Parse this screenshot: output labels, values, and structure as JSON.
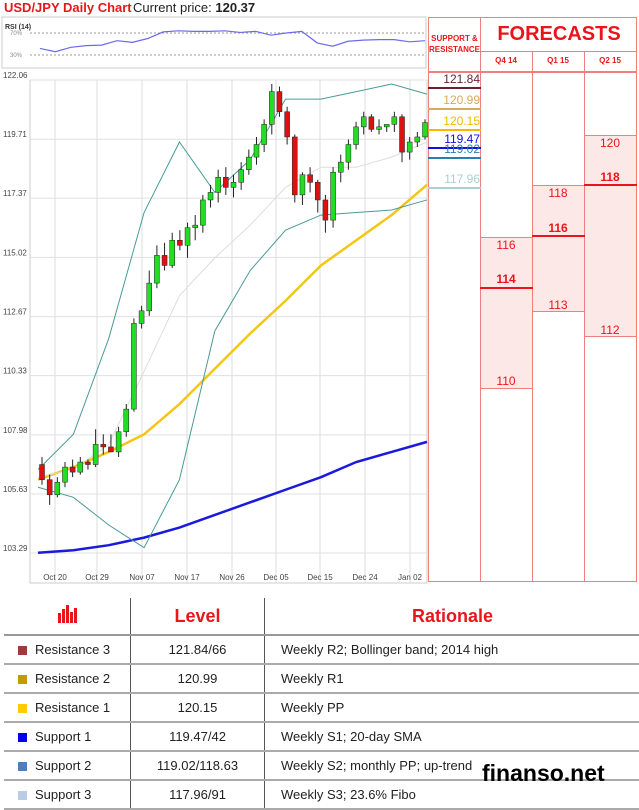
{
  "header": {
    "title": "USD/JPY Daily Chart",
    "current_price_label": "Current price:",
    "current_price": "120.37"
  },
  "chart_data": {
    "type": "candlestick",
    "y_ticks": [
      "122.06",
      "119.71",
      "117.37",
      "115.02",
      "112.67",
      "110.33",
      "107.98",
      "105.63",
      "103.29"
    ],
    "ylim": [
      103.29,
      122.06
    ],
    "x_ticks": [
      "Oct 20",
      "Oct 29",
      "Nov 07",
      "Nov 17",
      "Nov 26",
      "Dec 05",
      "Dec 15",
      "Dec 24",
      "Jan 02"
    ],
    "candles_ohlc": [
      [
        106.8,
        107.1,
        106.0,
        106.2
      ],
      [
        106.2,
        106.4,
        105.2,
        105.6
      ],
      [
        105.6,
        106.3,
        105.5,
        106.1
      ],
      [
        106.1,
        106.9,
        105.9,
        106.7
      ],
      [
        106.7,
        107.0,
        106.3,
        106.5
      ],
      [
        106.5,
        107.1,
        106.4,
        106.9
      ],
      [
        106.9,
        107.0,
        106.6,
        106.8
      ],
      [
        106.8,
        108.2,
        106.7,
        107.6
      ],
      [
        107.6,
        108.0,
        107.2,
        107.5
      ],
      [
        107.5,
        108.0,
        107.3,
        107.3
      ],
      [
        107.3,
        108.3,
        107.1,
        108.1
      ],
      [
        108.1,
        109.2,
        107.9,
        109.0
      ],
      [
        109.0,
        112.6,
        108.9,
        112.4
      ],
      [
        112.4,
        113.1,
        112.2,
        112.9
      ],
      [
        112.9,
        114.5,
        112.7,
        114.0
      ],
      [
        114.0,
        115.5,
        113.8,
        115.1
      ],
      [
        115.1,
        115.6,
        114.5,
        114.7
      ],
      [
        114.7,
        116.0,
        114.6,
        115.7
      ],
      [
        115.7,
        116.1,
        115.3,
        115.5
      ],
      [
        115.5,
        116.4,
        115.0,
        116.2
      ],
      [
        116.2,
        116.7,
        115.7,
        116.3
      ],
      [
        116.3,
        117.5,
        116.0,
        117.3
      ],
      [
        117.3,
        117.9,
        117.0,
        117.6
      ],
      [
        117.6,
        118.5,
        117.2,
        118.2
      ],
      [
        118.2,
        118.6,
        117.5,
        117.8
      ],
      [
        117.8,
        118.3,
        117.4,
        118.0
      ],
      [
        118.0,
        118.8,
        117.7,
        118.5
      ],
      [
        118.5,
        119.3,
        118.3,
        119.0
      ],
      [
        119.0,
        119.8,
        118.7,
        119.5
      ],
      [
        119.5,
        120.5,
        119.2,
        120.3
      ],
      [
        120.3,
        121.9,
        119.9,
        121.6
      ],
      [
        121.6,
        121.8,
        120.6,
        120.8
      ],
      [
        120.8,
        121.0,
        119.5,
        119.8
      ],
      [
        119.8,
        119.9,
        117.2,
        117.5
      ],
      [
        117.5,
        118.4,
        117.1,
        118.3
      ],
      [
        118.3,
        118.6,
        117.6,
        118.0
      ],
      [
        118.0,
        118.1,
        116.8,
        117.3
      ],
      [
        117.3,
        117.5,
        116.0,
        116.5
      ],
      [
        116.5,
        118.6,
        116.2,
        118.4
      ],
      [
        118.4,
        119.1,
        118.0,
        118.8
      ],
      [
        118.8,
        119.7,
        118.5,
        119.5
      ],
      [
        119.5,
        120.4,
        119.3,
        120.2
      ],
      [
        120.2,
        120.8,
        119.9,
        120.6
      ],
      [
        120.6,
        120.7,
        120.0,
        120.1
      ],
      [
        120.1,
        120.5,
        119.9,
        120.2
      ],
      [
        120.2,
        120.3,
        120.0,
        120.3
      ],
      [
        120.3,
        120.8,
        120.0,
        120.6
      ],
      [
        120.6,
        120.7,
        118.8,
        119.2
      ],
      [
        119.2,
        119.8,
        118.9,
        119.6
      ],
      [
        119.6,
        120.0,
        119.4,
        119.8
      ],
      [
        119.8,
        120.5,
        119.7,
        120.37
      ]
    ],
    "lines": [
      {
        "color": "#1a1adc",
        "values": [
          103.3,
          103.4,
          103.6,
          103.9,
          104.3,
          104.8,
          105.3,
          105.8,
          106.3,
          106.9,
          107.3,
          107.7
        ]
      },
      {
        "color": "#f5c518",
        "values": [
          106.2,
          106.7,
          107.3,
          108.0,
          109.2,
          110.6,
          112.0,
          113.3,
          114.7,
          115.7,
          116.7,
          117.9
        ]
      },
      {
        "color": "#4a9a9a",
        "values": [
          106.6,
          108.0,
          111.8,
          116.8,
          119.6,
          117.6,
          118.9,
          121.3,
          121.3,
          121.6,
          121.9,
          121.5
        ]
      },
      {
        "color": "#4a9a9a",
        "values": [
          105.9,
          105.5,
          104.4,
          103.5,
          106.2,
          112.1,
          114.5,
          116.1,
          116.7,
          116.8,
          116.9,
          117.3
        ]
      },
      {
        "color": "#dddddd",
        "values": [
          106.3,
          106.6,
          107.6,
          110.5,
          113.5,
          115.0,
          116.3,
          117.8,
          118.6,
          118.6,
          119.0,
          119.6
        ]
      }
    ],
    "rsi": {
      "label": "RSI (14)",
      "levels": [
        "70%",
        "30%"
      ],
      "values": [
        42,
        36,
        44,
        47,
        48,
        56,
        53,
        60,
        72,
        74,
        73,
        73,
        74,
        71,
        73,
        66,
        70,
        73,
        52,
        46,
        55,
        57,
        58,
        58,
        54,
        56
      ]
    }
  },
  "support_resistance": {
    "header": "SUPPORT & RESISTANCE",
    "levels": [
      {
        "value": "121.84",
        "color": "#6b1f33"
      },
      {
        "value": "120.99",
        "color": "#d9a95a"
      },
      {
        "value": "120.15",
        "color": "#f5b800"
      },
      {
        "value": "119.47",
        "color": "#1010e0"
      },
      {
        "value": "119.02",
        "color": "#2a7fb0"
      },
      {
        "value": "117.96",
        "color": "#a8d0d0"
      }
    ]
  },
  "forecasts": {
    "title": "FORECASTS",
    "quarters": [
      {
        "label": "Q4 14",
        "high": "116",
        "mid": "114",
        "low": "110"
      },
      {
        "label": "Q1 15",
        "high": "118",
        "mid": "116",
        "low": "113"
      },
      {
        "label": "Q2 15",
        "high": "120",
        "mid": "118",
        "low": "112"
      }
    ]
  },
  "table": {
    "headers": {
      "level": "Level",
      "rationale": "Rationale"
    },
    "rows": [
      {
        "name": "Resistance 3",
        "level": "121.84/66",
        "rationale": "Weekly R2; Bollinger band; 2014 high",
        "color": "#a03a3a"
      },
      {
        "name": "Resistance 2",
        "level": "120.99",
        "rationale": "Weekly R1",
        "color": "#c8960a"
      },
      {
        "name": "Resistance 1",
        "level": "120.15",
        "rationale": "Weekly PP",
        "color": "#ffcc00"
      },
      {
        "name": "Support 1",
        "level": "119.47/42",
        "rationale": "Weekly S1; 20-day SMA",
        "color": "#0000ee"
      },
      {
        "name": "Support 2",
        "level": "119.02/118.63",
        "rationale": "Weekly S2; monthly PP; up-trend",
        "color": "#4a7fc0"
      },
      {
        "name": "Support 3",
        "level": "117.96/91",
        "rationale": "Weekly S3; 23.6% Fibo",
        "color": "#b8cce4"
      }
    ]
  },
  "watermark": "finanso.net"
}
